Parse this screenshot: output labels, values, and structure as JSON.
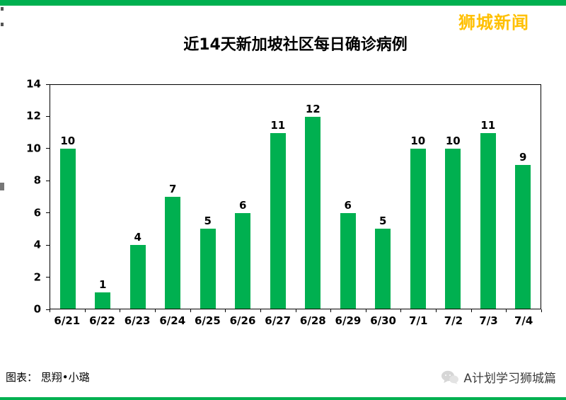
{
  "accent_color": "#00B050",
  "brand": {
    "name": "狮城新闻",
    "color": "#FFC000"
  },
  "chart_data": {
    "type": "bar",
    "title": "近14天新加坡社区每日确诊病例",
    "categories": [
      "6/21",
      "6/22",
      "6/23",
      "6/24",
      "6/25",
      "6/26",
      "6/27",
      "6/28",
      "6/29",
      "6/30",
      "7/1",
      "7/2",
      "7/3",
      "7/4"
    ],
    "values": [
      10,
      1,
      4,
      7,
      5,
      6,
      11,
      12,
      6,
      5,
      10,
      10,
      11,
      9
    ],
    "xlabel": "",
    "ylabel": "",
    "ylim": [
      0,
      14
    ],
    "y_ticks": [
      0,
      2,
      4,
      6,
      8,
      10,
      12,
      14
    ],
    "bar_color": "#00B050",
    "grid": false,
    "data_labels": true,
    "legend": "none"
  },
  "footer": {
    "credit": "图表： 思翔•小璐",
    "account": "A计划学习狮城篇"
  }
}
